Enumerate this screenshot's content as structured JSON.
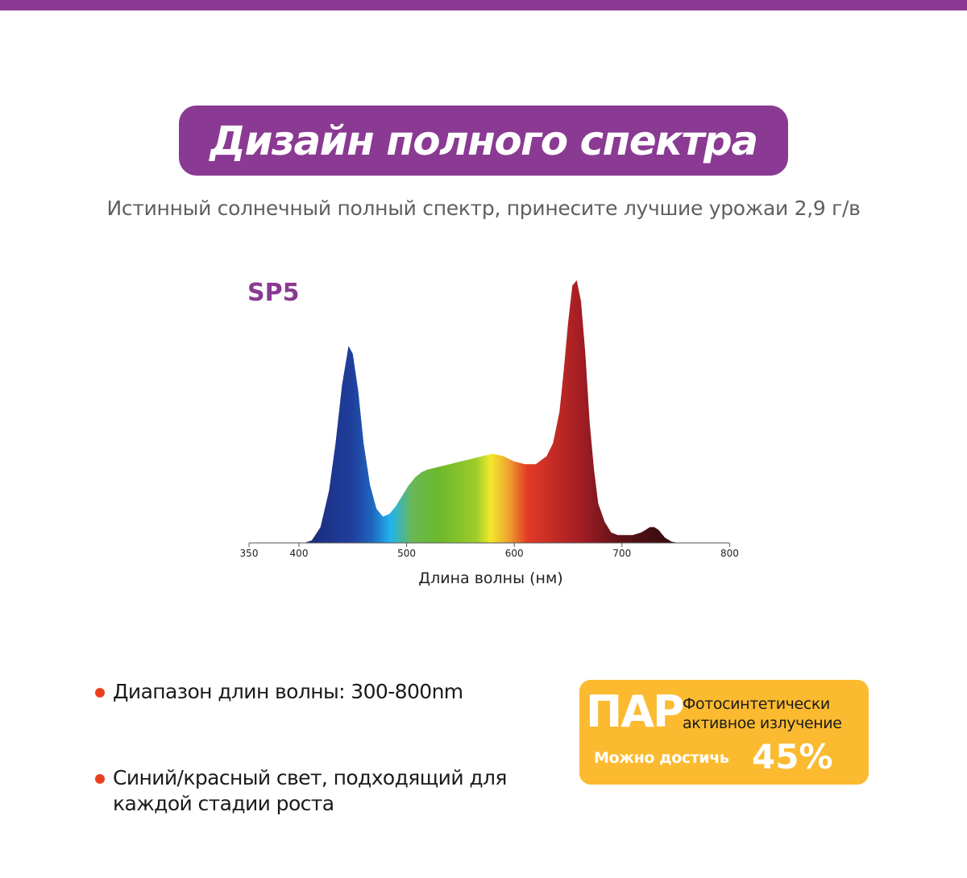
{
  "header": {
    "title": "Дизайн полного спектра",
    "subtitle": "Истинный солнечный полный спектр, принесите лучшие урожаи 2,9 г/в",
    "accent_color": "#8a3a93"
  },
  "chart_data": {
    "type": "area",
    "title": "SP5",
    "xlabel": "Длина волны (нм)",
    "ylabel": "",
    "xlim": [
      350,
      800
    ],
    "ylim": [
      0,
      1
    ],
    "x_ticks": [
      "350",
      "400",
      "500",
      "600",
      "700",
      "800"
    ],
    "grid": false,
    "series": [
      {
        "x": [
          405,
          412,
          420,
          428,
          434,
          440,
          446,
          450,
          455,
          460,
          466,
          472,
          478,
          484,
          490,
          496,
          502,
          508,
          514,
          520,
          530,
          540,
          550,
          560,
          570,
          580,
          590,
          600,
          610,
          620,
          630,
          636,
          642,
          646,
          650,
          654,
          658,
          662,
          666,
          670,
          674,
          678,
          684,
          690,
          696,
          702,
          710,
          718,
          722,
          726,
          730,
          734,
          740,
          746,
          752,
          756
        ],
        "values": [
          0.0,
          0.01,
          0.06,
          0.2,
          0.38,
          0.6,
          0.75,
          0.72,
          0.58,
          0.38,
          0.22,
          0.13,
          0.1,
          0.11,
          0.14,
          0.18,
          0.22,
          0.25,
          0.27,
          0.28,
          0.29,
          0.3,
          0.31,
          0.32,
          0.33,
          0.34,
          0.33,
          0.31,
          0.3,
          0.3,
          0.33,
          0.38,
          0.5,
          0.66,
          0.84,
          0.98,
          1.0,
          0.92,
          0.72,
          0.46,
          0.28,
          0.15,
          0.08,
          0.04,
          0.03,
          0.03,
          0.03,
          0.04,
          0.05,
          0.06,
          0.06,
          0.05,
          0.02,
          0.005,
          0.0,
          0.0
        ]
      }
    ],
    "color_stops": [
      {
        "nm": 405,
        "color": "#1c2a7a"
      },
      {
        "nm": 450,
        "color": "#1f3f9c"
      },
      {
        "nm": 468,
        "color": "#1f66c0"
      },
      {
        "nm": 485,
        "color": "#21b3ee"
      },
      {
        "nm": 505,
        "color": "#6ab855"
      },
      {
        "nm": 530,
        "color": "#6bb82c"
      },
      {
        "nm": 565,
        "color": "#9ecd2a"
      },
      {
        "nm": 578,
        "color": "#f2e92b"
      },
      {
        "nm": 595,
        "color": "#efa12f"
      },
      {
        "nm": 612,
        "color": "#e33a26"
      },
      {
        "nm": 660,
        "color": "#a51e24"
      },
      {
        "nm": 700,
        "color": "#5a1218"
      },
      {
        "nm": 760,
        "color": "#2a0a0c"
      }
    ]
  },
  "features": [
    "Диапазон длин волны: 300-800nm",
    "Синий/красный свет, подходящий для каждой стадии роста"
  ],
  "par_box": {
    "title": "ПАР",
    "description_line1": "Фотосинтетически",
    "description_line2": "активное излучение",
    "reach_label": "Можно достичь",
    "percent": "45%",
    "value": 45,
    "bg_color": "#fbba2f",
    "bullet_color": "#e8401c"
  }
}
